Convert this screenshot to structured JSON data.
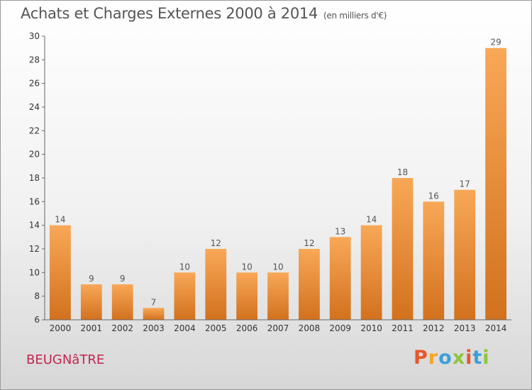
{
  "chart_data": {
    "type": "bar",
    "title": "Achats et Charges Externes 2000 à 2014",
    "unit_label": "(en milliers d'€)",
    "xlabel": "",
    "ylabel": "",
    "categories": [
      "2000",
      "2001",
      "2002",
      "2003",
      "2004",
      "2005",
      "2006",
      "2007",
      "2008",
      "2009",
      "2010",
      "2011",
      "2012",
      "2013",
      "2014"
    ],
    "values": [
      14,
      9,
      9,
      7,
      10,
      12,
      10,
      10,
      12,
      13,
      14,
      18,
      16,
      17,
      29
    ],
    "ylim": [
      6,
      30
    ],
    "yticks": [
      6,
      8,
      10,
      12,
      14,
      16,
      18,
      20,
      22,
      24,
      26,
      28,
      30
    ],
    "grid": false,
    "bar_color": "#f09a45"
  },
  "footer": {
    "commune_name": "BEUGNâTRE",
    "logo_text": "Proxiti"
  },
  "colors": {
    "commune": "#c2254f",
    "logo": [
      "#e8572b",
      "#f5a623",
      "#3aa0d9",
      "#8cc63e",
      "#e8572b",
      "#3aa0d9",
      "#8cc63e"
    ]
  }
}
